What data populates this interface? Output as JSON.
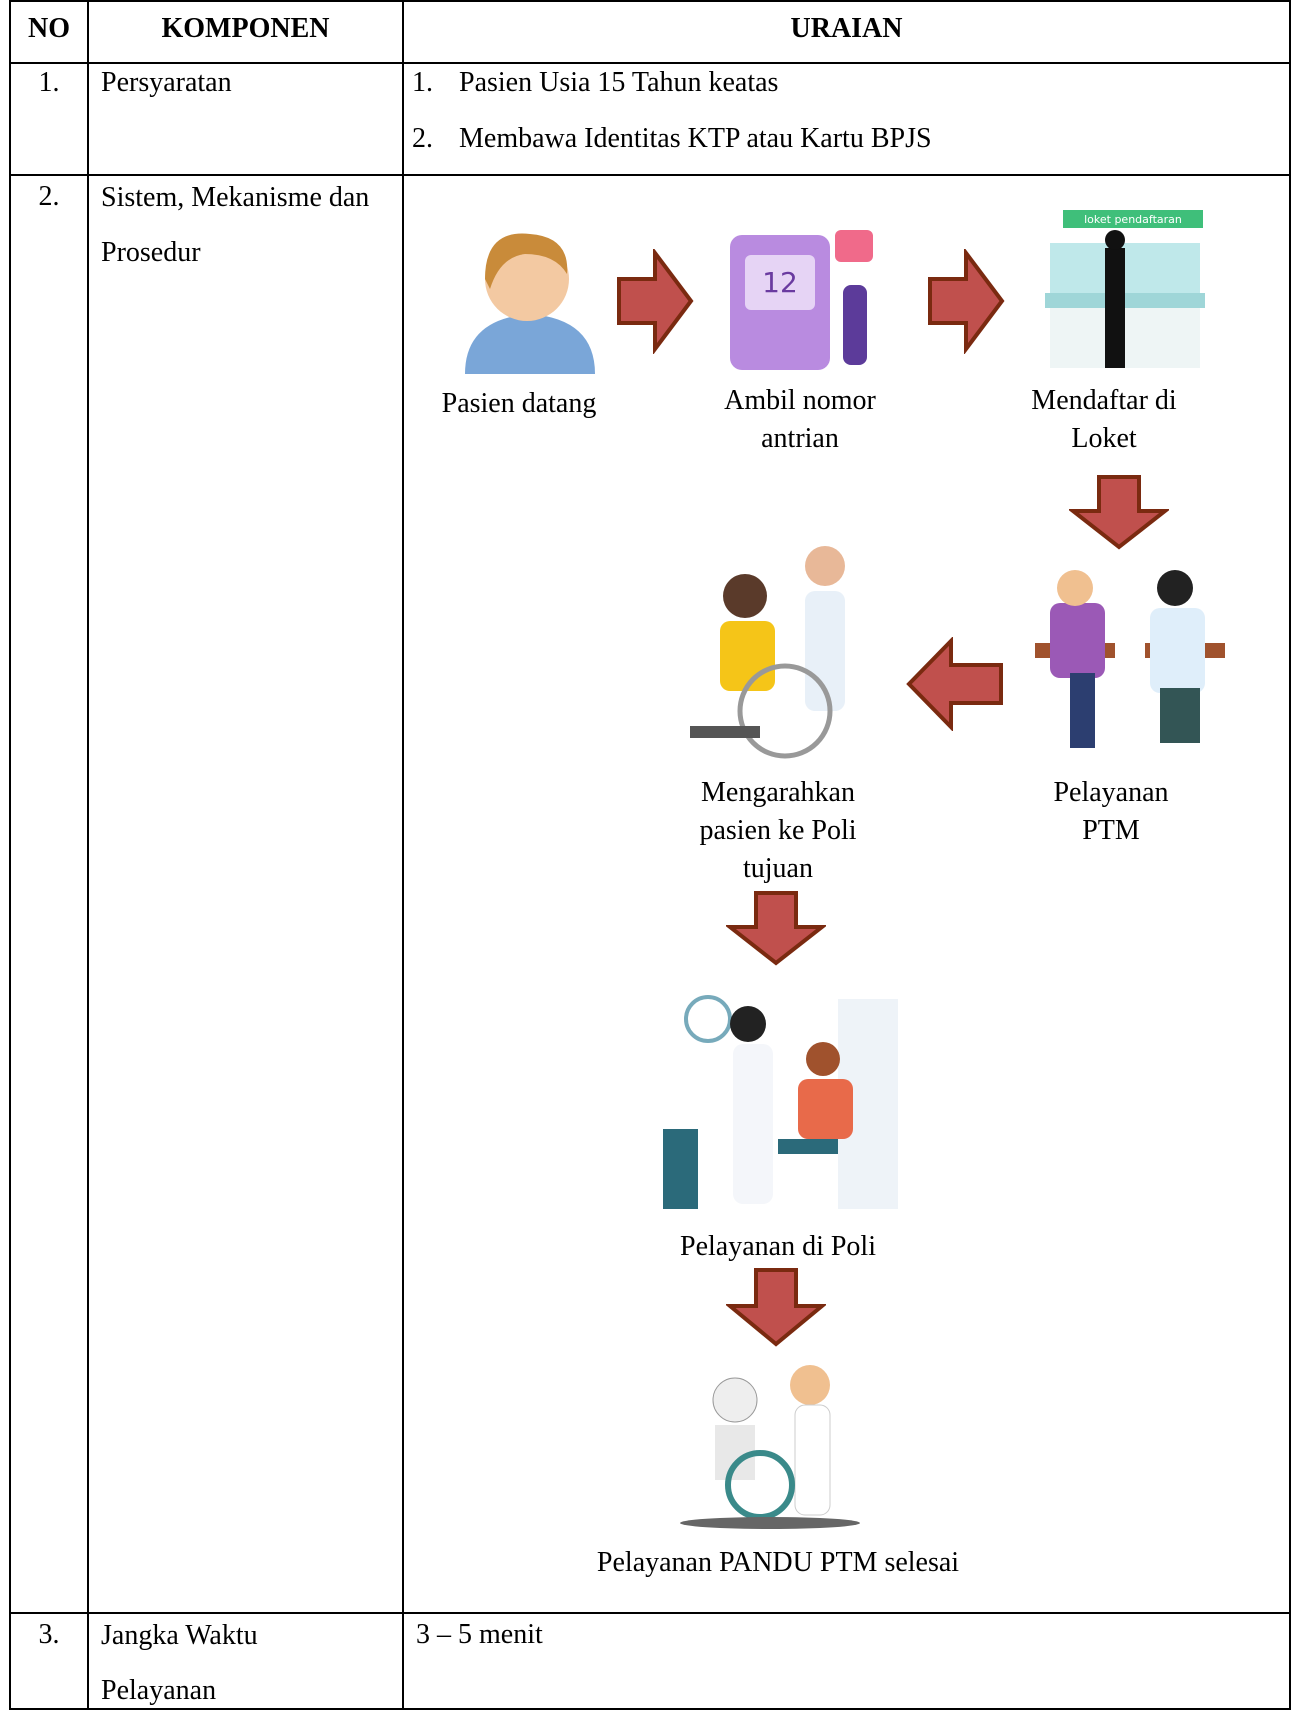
{
  "table": {
    "header": [
      "NO",
      "KOMPONEN",
      "URAIAN"
    ],
    "rows": [
      {
        "no": "1.",
        "component": "Persyaratan",
        "items": [
          {
            "number": "1.",
            "text": "Pasien Usia 15 Tahun keatas"
          },
          {
            "number": "2.",
            "text": "Membawa Identitas KTP atau Kartu BPJS"
          }
        ]
      },
      {
        "no": "2.",
        "component": "Sistem, Mekanisme dan Prosedur",
        "flow": [
          "Pasien datang",
          "Ambil nomor antrian",
          "Mendaftar di Loket",
          "Pelayanan PTM",
          "Mengarahkan pasien ke Poli tujuan",
          "Pelayanan di Poli",
          "Pelayanan PANDU PTM selesai"
        ],
        "sign": "loket pendaftaran"
      },
      {
        "no": "3.",
        "component": "Jangka Waktu Pelayanan",
        "text": "3 – 5 menit"
      }
    ]
  }
}
